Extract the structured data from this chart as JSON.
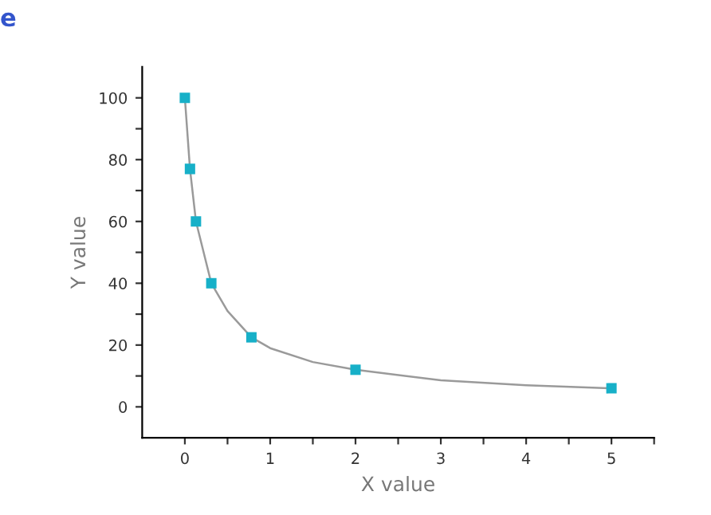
{
  "chart_data": {
    "type": "scatter",
    "xlabel": "X value",
    "ylabel": "Y value",
    "annotations": [
      "e"
    ],
    "xlim": [
      -0.5,
      5.5
    ],
    "ylim": [
      -10,
      110
    ],
    "xticks": [
      0,
      {
        "value": 0.5,
        "label": null
      },
      1,
      {
        "value": 1.5,
        "label": null
      },
      2,
      {
        "value": 2.5,
        "label": null
      },
      3,
      {
        "value": 3.5,
        "label": null
      },
      4,
      {
        "value": 4.5,
        "label": null
      },
      5,
      {
        "value": 5.5,
        "label": null
      }
    ],
    "yticks": [
      0,
      {
        "value": 10,
        "label": null
      },
      20,
      {
        "value": 30,
        "label": null
      },
      40,
      {
        "value": 50,
        "label": null
      },
      60,
      {
        "value": 70,
        "label": null
      },
      80,
      {
        "value": 90,
        "label": null
      },
      100
    ],
    "grid": false,
    "legend": false,
    "series": [
      {
        "type": "line",
        "marker": "none",
        "color": "#9a9a9a",
        "x": [
          0,
          0.06,
          0.13,
          0.31,
          0.5,
          0.78,
          1,
          1.5,
          2,
          3,
          4,
          5
        ],
        "values": [
          100,
          77,
          60,
          40,
          31,
          22.5,
          19,
          14.5,
          12,
          8.6,
          7,
          6
        ]
      },
      {
        "marker": "square",
        "color": "#17b0c8",
        "x": [
          0,
          0.06,
          0.13,
          0.31,
          0.78,
          2,
          5
        ],
        "values": [
          100,
          77,
          60,
          40,
          22.5,
          12,
          6
        ]
      }
    ]
  }
}
